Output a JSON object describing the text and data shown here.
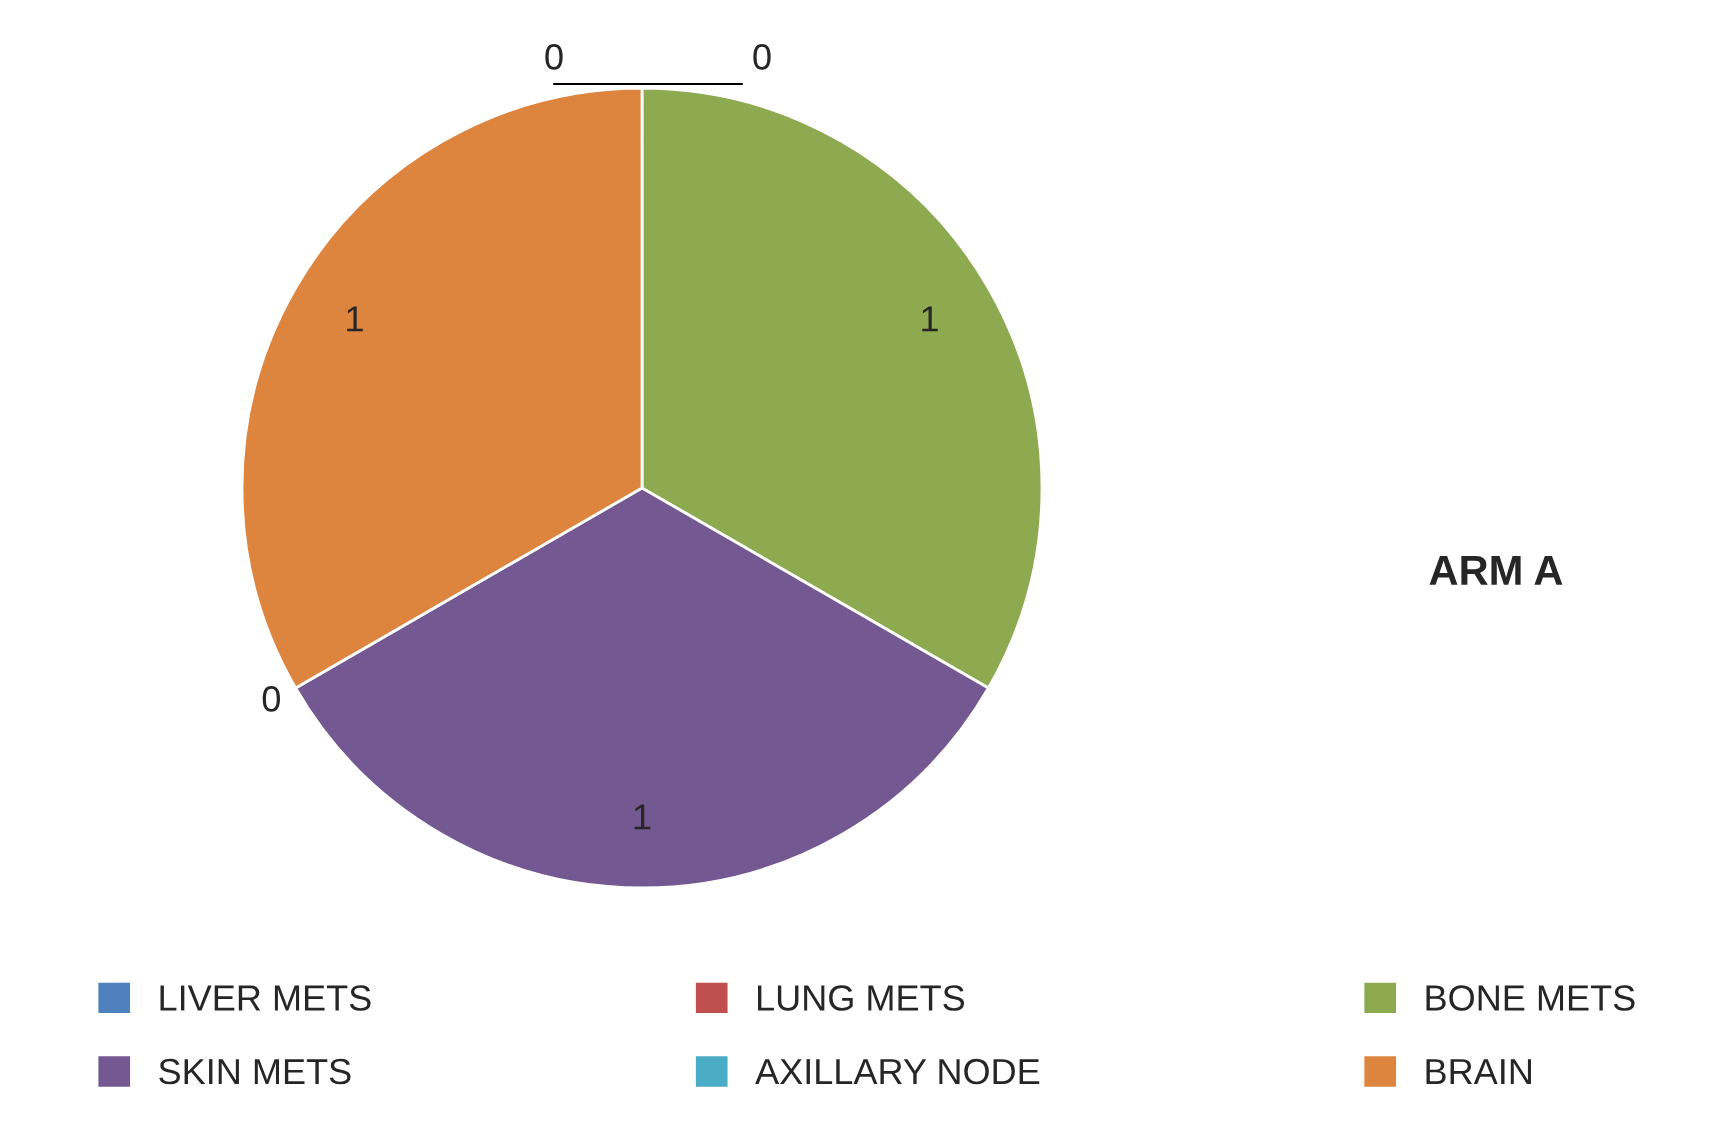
{
  "chart_data": {
    "type": "pie",
    "title": "ARM A",
    "categories": [
      "LIVER METS",
      "LUNG METS",
      "BONE METS",
      "SKIN METS",
      "AXILLARY NODE",
      "BRAIN"
    ],
    "values": [
      0,
      0,
      1,
      1,
      0,
      1
    ],
    "colors": [
      "#4f81bd",
      "#c0504d",
      "#8eaa50",
      "#735891",
      "#4bacc6",
      "#dd843e"
    ],
    "value_labels": [
      "0",
      "0",
      "1",
      "1",
      "0",
      "1"
    ],
    "legend": "bottom"
  }
}
